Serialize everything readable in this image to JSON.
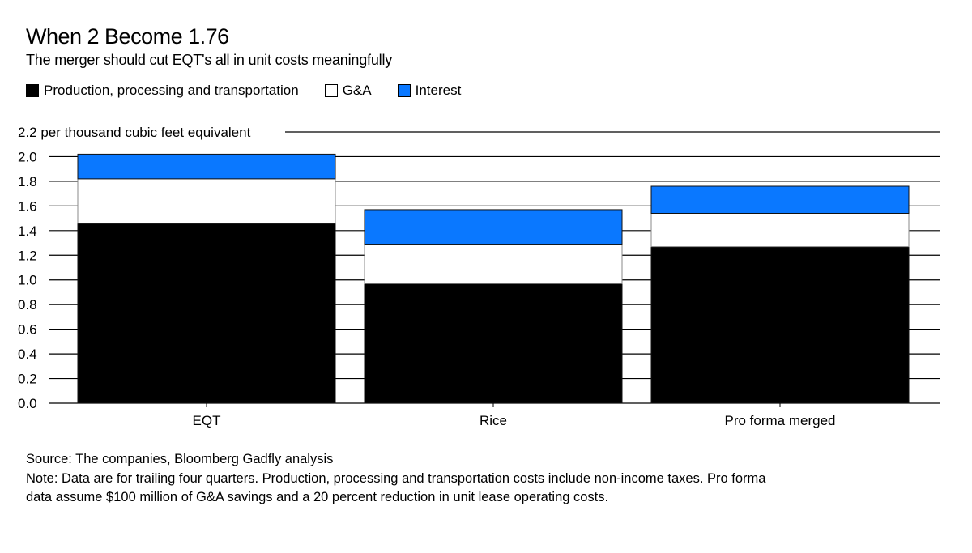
{
  "header": {
    "title": "When 2 Become 1.76",
    "subtitle": "The merger should cut EQT's all in unit costs meaningfully"
  },
  "legend": [
    {
      "label": "Production, processing and transportation",
      "color": "#000000"
    },
    {
      "label": "G&A",
      "color": "#ffffff"
    },
    {
      "label": "Interest",
      "color": "#0a78ff"
    }
  ],
  "footer": {
    "source": "Source: The companies, Bloomberg Gadfly analysis",
    "note": "Note: Data are for trailing four quarters. Production, processing and transportation costs include non-income taxes. Pro forma data assume $100 million of G&A savings and a 20 percent reduction in unit lease operating costs."
  },
  "chart_data": {
    "type": "bar",
    "stacked": true,
    "title": "When 2 Become 1.76",
    "subtitle": "The merger should cut EQT's all in unit costs meaningfully",
    "xlabel": "",
    "ylabel": "per thousand cubic feet equivalent",
    "top_tick_label": "2.2 per thousand cubic feet equivalent",
    "ylim": [
      0,
      2.2
    ],
    "yticks": [
      0.0,
      0.2,
      0.4,
      0.6,
      0.8,
      1.0,
      1.2,
      1.4,
      1.6,
      1.8,
      2.0,
      2.2
    ],
    "ytick_labels": [
      "0.0",
      "0.2",
      "0.4",
      "0.6",
      "0.8",
      "1.0",
      "1.2",
      "1.4",
      "1.6",
      "1.8",
      "2.0",
      "2.2"
    ],
    "grid": true,
    "legend_position": "top-left",
    "categories": [
      "EQT",
      "Rice",
      "Pro forma merged"
    ],
    "series": [
      {
        "name": "Production, processing and transportation",
        "color": "#000000",
        "values": [
          1.46,
          0.97,
          1.27
        ]
      },
      {
        "name": "G&A",
        "color": "#ffffff",
        "values": [
          0.36,
          0.32,
          0.27
        ]
      },
      {
        "name": "Interest",
        "color": "#0a78ff",
        "values": [
          0.2,
          0.28,
          0.22
        ]
      }
    ],
    "totals": [
      2.02,
      1.57,
      1.76
    ]
  }
}
